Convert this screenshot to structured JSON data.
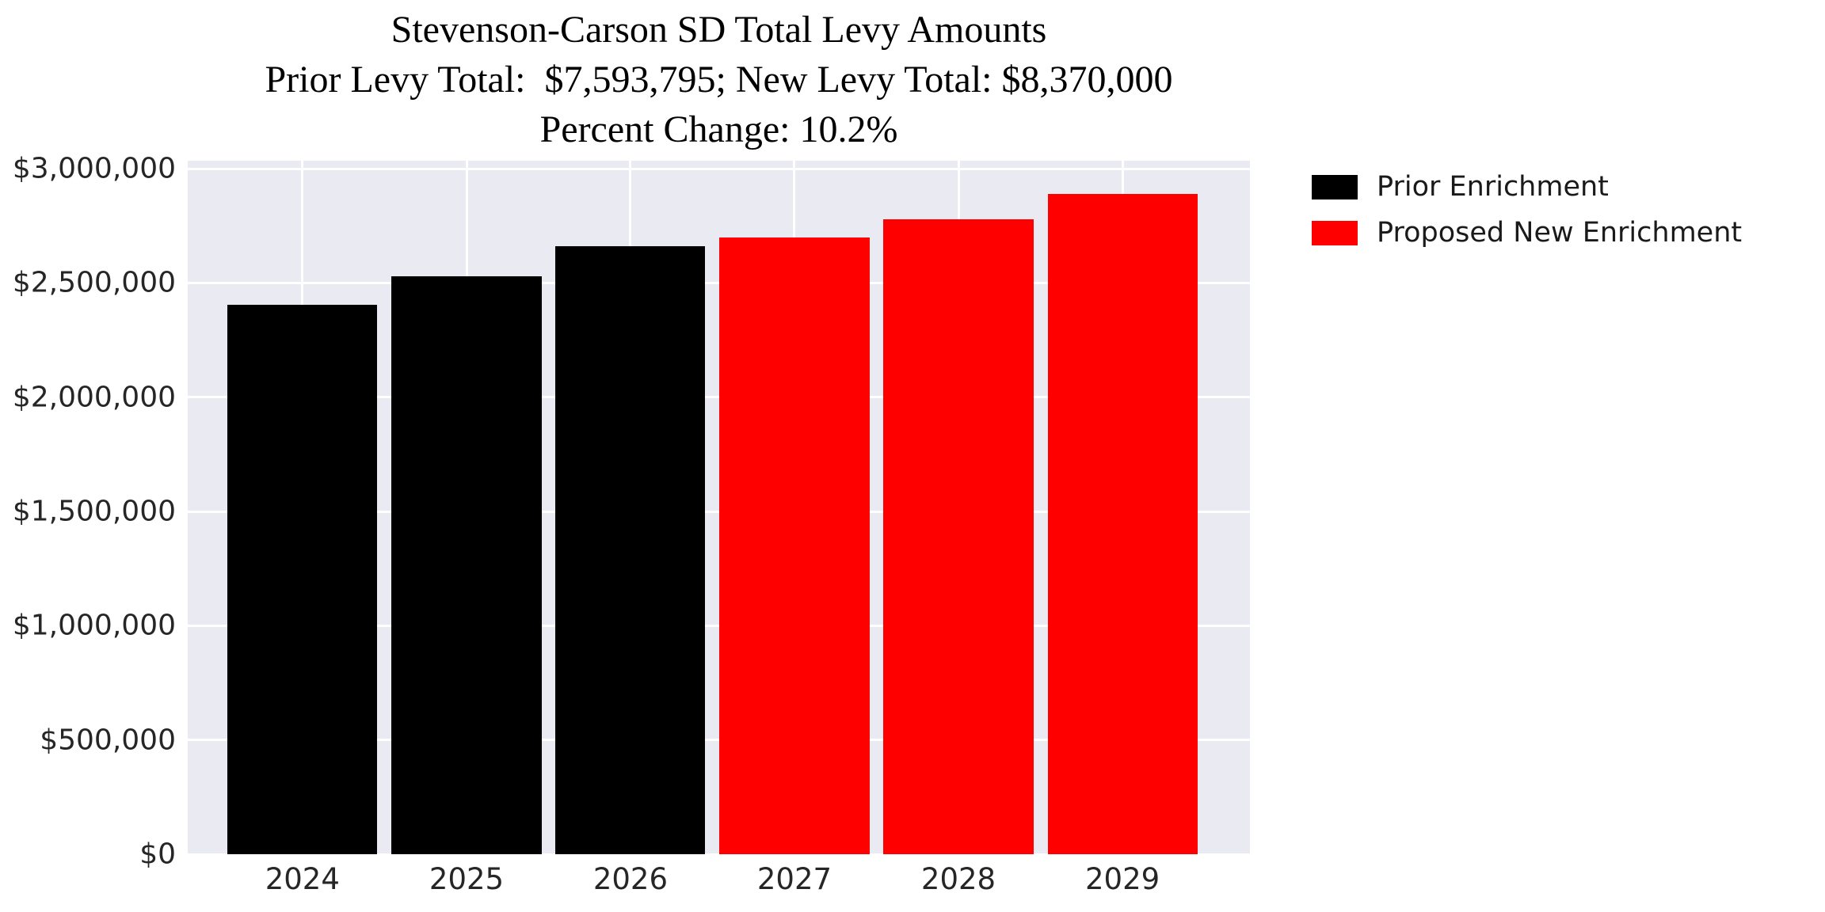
{
  "title": {
    "line1": "Stevenson-Carson SD Total Levy Amounts",
    "line2": "Prior Levy Total:  $7,593,795; New Levy Total: $8,370,000",
    "line3": "Percent Change: 10.2%"
  },
  "legend": {
    "position": "upper-right-outside",
    "items": [
      {
        "label": "Prior Enrichment",
        "color": "#000000"
      },
      {
        "label": "Proposed New Enrichment",
        "color": "#ff0000"
      }
    ]
  },
  "colors": {
    "plot_background": "#eaeaf2",
    "gridline": "#ffffff",
    "tick_text": "#262626",
    "prior_series": "#000000",
    "new_series": "#ff0000"
  },
  "chart_data": {
    "type": "bar",
    "title": "Stevenson-Carson SD Total Levy Amounts\nPrior Levy Total:  $7,593,795; New Levy Total: $8,370,000\nPercent Change: 10.2%",
    "categories": [
      "2024",
      "2025",
      "2026",
      "2027",
      "2028",
      "2029"
    ],
    "series": [
      {
        "name": "Prior Enrichment",
        "color": "#000000",
        "values": [
          2403795,
          2530000,
          2660000,
          null,
          null,
          null
        ]
      },
      {
        "name": "Proposed New Enrichment",
        "color": "#ff0000",
        "values": [
          null,
          null,
          null,
          2700000,
          2780000,
          2890000
        ]
      }
    ],
    "bars": [
      {
        "year": "2024",
        "value": 2403795,
        "series": "Prior Enrichment",
        "color": "#000000"
      },
      {
        "year": "2025",
        "value": 2530000,
        "series": "Prior Enrichment",
        "color": "#000000"
      },
      {
        "year": "2026",
        "value": 2660000,
        "series": "Prior Enrichment",
        "color": "#000000"
      },
      {
        "year": "2027",
        "value": 2700000,
        "series": "Proposed New Enrichment",
        "color": "#ff0000"
      },
      {
        "year": "2028",
        "value": 2780000,
        "series": "Proposed New Enrichment",
        "color": "#ff0000"
      },
      {
        "year": "2029",
        "value": 2890000,
        "series": "Proposed New Enrichment",
        "color": "#ff0000"
      }
    ],
    "prior_levy_total": "$7,593,795",
    "new_levy_total": "$8,370,000",
    "percent_change": "10.2%",
    "xlabel": "",
    "ylabel": "",
    "ylim": [
      0,
      3035000
    ],
    "y_tick_step": 500000,
    "y_tick_labels": [
      "$0",
      "$500,000",
      "$1,000,000",
      "$1,500,000",
      "$2,000,000",
      "$2,500,000",
      "$3,000,000"
    ],
    "grid": true,
    "legend_position": "upper right, outside plot"
  }
}
